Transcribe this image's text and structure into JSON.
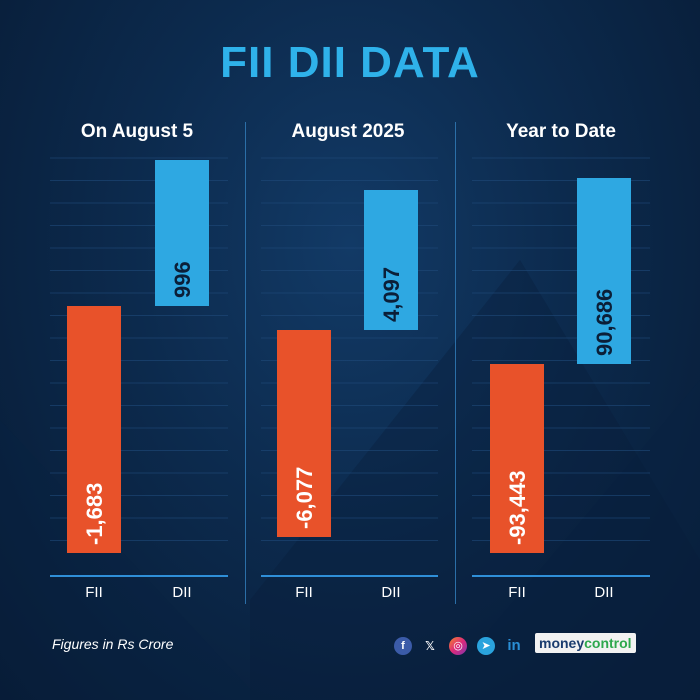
{
  "title": "FII DII DATA",
  "footnote": "Figures in Rs Crore",
  "brand": {
    "part1": "money",
    "part2": "control"
  },
  "social_icons": [
    "facebook-icon",
    "x-icon",
    "instagram-icon",
    "telegram-icon",
    "linkedin-icon"
  ],
  "colors": {
    "fii": "#e8522a",
    "dii": "#2ea8e2",
    "title": "#2fb2ea"
  },
  "chart_data": [
    {
      "type": "bar",
      "title": "On August 5",
      "categories": [
        "FII",
        "DII"
      ],
      "values": [
        -1683,
        996
      ],
      "labels": [
        "-1,683",
        "996"
      ]
    },
    {
      "type": "bar",
      "title": "August 2025",
      "categories": [
        "FII",
        "DII"
      ],
      "values": [
        -6077,
        4097
      ],
      "labels": [
        "-6,077",
        "4,097"
      ]
    },
    {
      "type": "bar",
      "title": "Year to Date",
      "categories": [
        "FII",
        "DII"
      ],
      "values": [
        -93443,
        90686
      ],
      "labels": [
        "-93,443",
        "90,686"
      ]
    }
  ]
}
